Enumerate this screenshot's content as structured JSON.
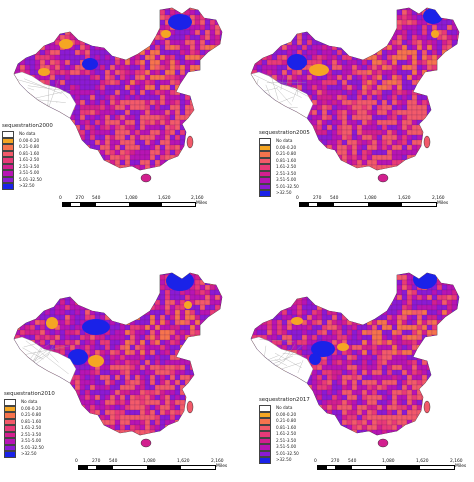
{
  "colors": {
    "no_data": "#ffffff",
    "c1": "#f5a623",
    "c2": "#f6734d",
    "c3": "#f25a6a",
    "c4": "#e83a78",
    "c5": "#d21f8f",
    "c6": "#b714b4",
    "c7": "#8b1ad4",
    "c8": "#1a22e8"
  },
  "legend_classes": [
    {
      "label": "No data",
      "color": "#ffffff"
    },
    {
      "label": "0.00-0.20",
      "color": "#f5a623"
    },
    {
      "label": "0.21-0.80",
      "color": "#f6734d"
    },
    {
      "label": "0.81-1.60",
      "color": "#f25a6a"
    },
    {
      "label": "1.61-2.50",
      "color": "#e83a78"
    },
    {
      "label": "2.51-3.50",
      "color": "#d21f8f"
    },
    {
      "label": "3.51-5.00",
      "color": "#b714b4"
    },
    {
      "label": "5.01-32.50",
      "color": "#8b1ad4"
    },
    {
      "label": ">32.50",
      "color": "#1a22e8"
    }
  ],
  "scale": {
    "ticks": [
      "0",
      "270",
      "540",
      "1,080",
      "1,620",
      "2,160"
    ],
    "unit": "Miles"
  },
  "panels": [
    {
      "title": "sequestration2000"
    },
    {
      "title": "sequestration2005"
    },
    {
      "title": "sequestration2010"
    },
    {
      "title": "sequestration2017"
    }
  ]
}
